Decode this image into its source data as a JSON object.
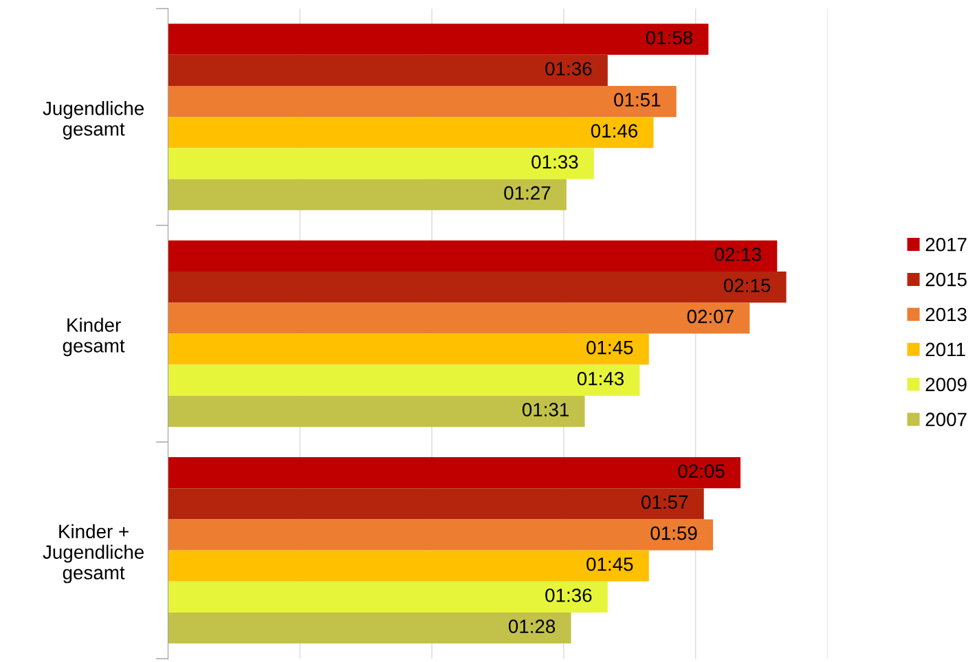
{
  "chart_data": {
    "type": "bar",
    "orientation": "horizontal",
    "categories": [
      "Jugendliche\ngesamt",
      "Kinder\ngesamt",
      "Kinder +\nJugendliche\ngesamt"
    ],
    "series": [
      {
        "name": "2017",
        "color": "#c00000",
        "values": [
          118,
          133,
          125
        ],
        "value_labels": [
          "01:58",
          "02:13",
          "02:05"
        ]
      },
      {
        "name": "2015",
        "color": "#b5250e",
        "values": [
          96,
          135,
          117
        ],
        "value_labels": [
          "01:36",
          "02:15",
          "01:57"
        ]
      },
      {
        "name": "2013",
        "color": "#ed7d31",
        "values": [
          111,
          127,
          119
        ],
        "value_labels": [
          "01:51",
          "02:07",
          "01:59"
        ]
      },
      {
        "name": "2011",
        "color": "#ffc000",
        "values": [
          106,
          105,
          105
        ],
        "value_labels": [
          "01:46",
          "01:45",
          "01:45"
        ]
      },
      {
        "name": "2009",
        "color": "#e6f53a",
        "values": [
          93,
          103,
          96
        ],
        "value_labels": [
          "01:33",
          "01:43",
          "01:36"
        ]
      },
      {
        "name": "2007",
        "color": "#c2c24a",
        "values": [
          87,
          91,
          88
        ],
        "value_labels": [
          "01:27",
          "01:31",
          "01:28"
        ]
      }
    ],
    "xlim": [
      0,
      144
    ],
    "xticks": [
      {
        "value": 0,
        "label": null
      },
      {
        "value": 28.8,
        "label": null
      },
      {
        "value": 57.6,
        "label": null
      },
      {
        "value": 86.4,
        "label": null
      },
      {
        "value": 115.2,
        "label": null
      },
      {
        "value": 144,
        "label": null
      }
    ],
    "tick_labels": "y",
    "grid": "x",
    "legend": "right"
  }
}
